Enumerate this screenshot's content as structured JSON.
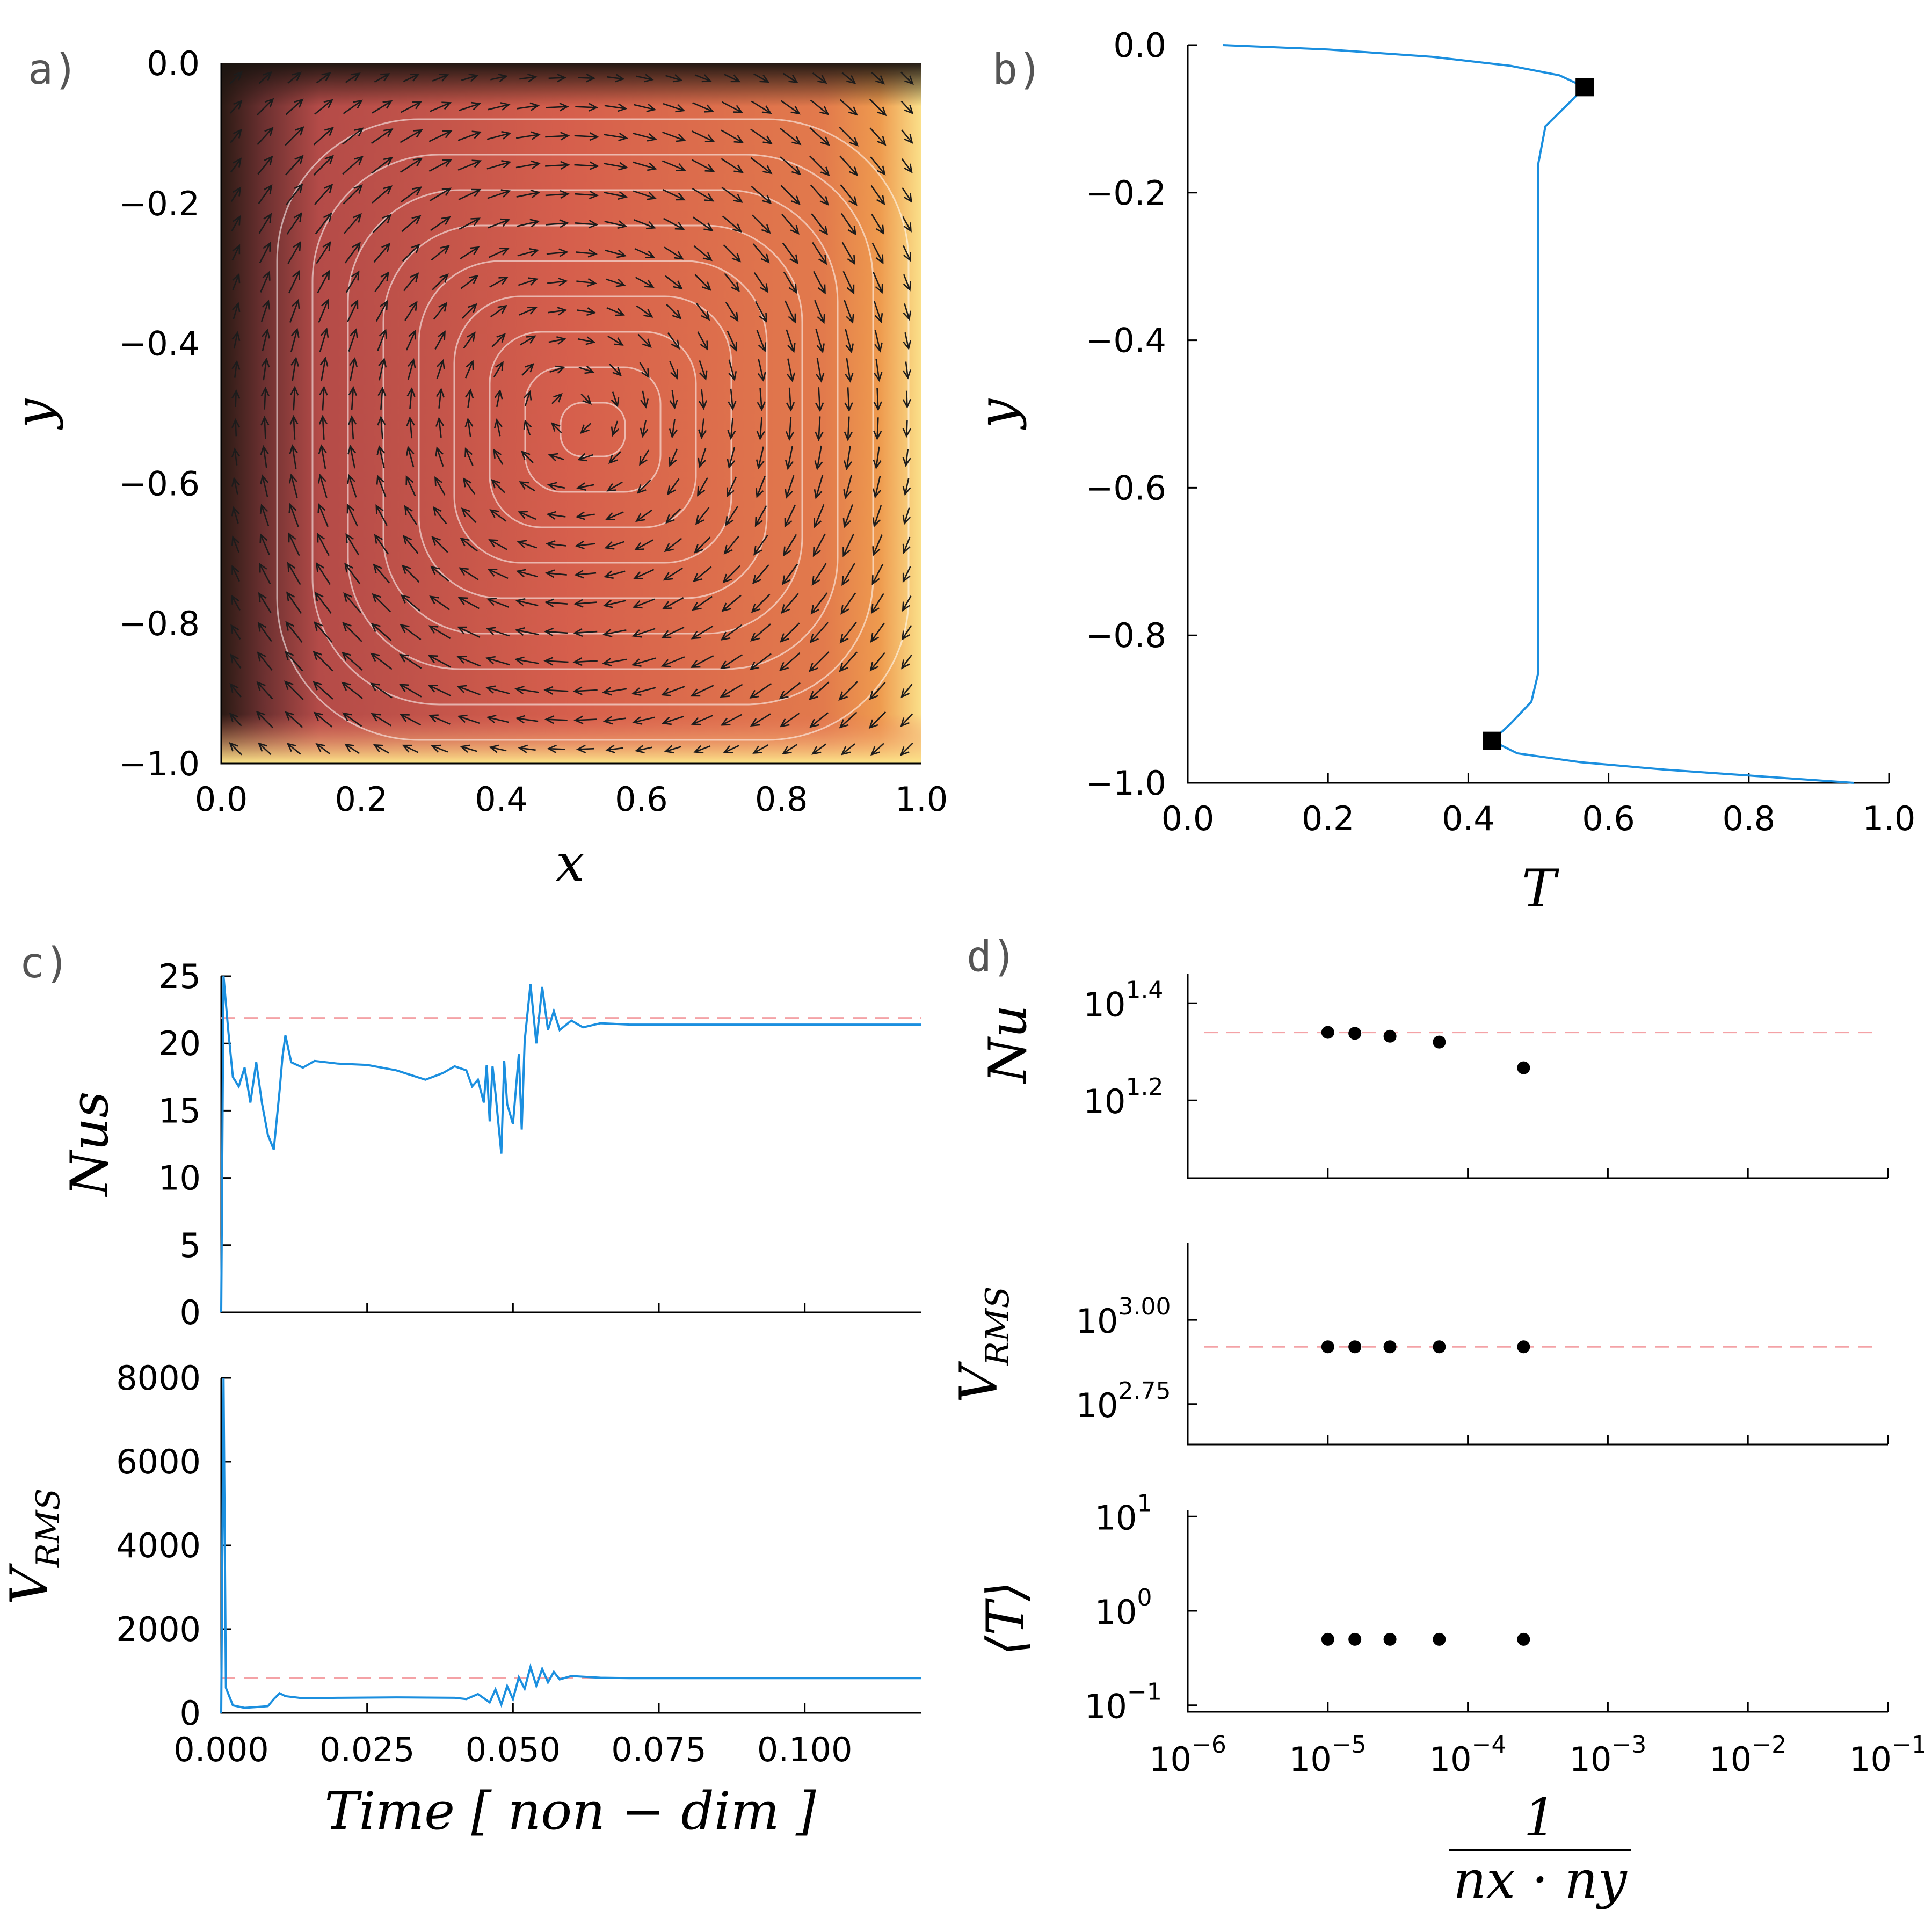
{
  "chart_data": [
    {
      "id": "a",
      "panel_label": "a)",
      "type": "heatmap",
      "title": "",
      "xlabel": "x",
      "ylabel": "y",
      "xlim": [
        0.0,
        1.0
      ],
      "ylim": [
        -1.0,
        0.0
      ],
      "x_ticks": [
        "0.0",
        "0.2",
        "0.4",
        "0.6",
        "0.8",
        "1.0"
      ],
      "y_ticks": [
        "0.0",
        "−0.2",
        "−0.4",
        "−0.6",
        "−0.8",
        "−1.0"
      ],
      "field": "temperature with velocity arrows and streamlines (single clockwise convection cell)",
      "colormap": [
        "#1a1410",
        "#5a2a2a",
        "#b94a48",
        "#d9604a",
        "#ee9a4e",
        "#fde88a"
      ],
      "colors": {
        "arrow": "#1c1c1c",
        "streamline": "#ffffff"
      }
    },
    {
      "id": "b",
      "panel_label": "b)",
      "type": "line",
      "title": "",
      "xlabel": "T",
      "ylabel": "y",
      "xlim": [
        0.0,
        1.0
      ],
      "ylim": [
        -1.0,
        0.0
      ],
      "x_ticks": [
        "0.0",
        "0.2",
        "0.4",
        "0.6",
        "0.8",
        "1.0"
      ],
      "y_ticks": [
        "0.0",
        "−0.2",
        "−0.4",
        "−0.6",
        "−0.8",
        "−1.0"
      ],
      "series": [
        {
          "points": [
            [
              0.05,
              0.0
            ],
            [
              0.2,
              -0.006
            ],
            [
              0.35,
              -0.016
            ],
            [
              0.46,
              -0.028
            ],
            [
              0.53,
              -0.041
            ],
            [
              0.566,
              -0.057
            ],
            [
              0.54,
              -0.082
            ],
            [
              0.51,
              -0.11
            ],
            [
              0.5,
              -0.16
            ],
            [
              0.5,
              -0.3
            ],
            [
              0.5,
              -0.5
            ],
            [
              0.5,
              -0.7
            ],
            [
              0.5,
              -0.85
            ],
            [
              0.49,
              -0.89
            ],
            [
              0.46,
              -0.92
            ],
            [
              0.434,
              -0.943
            ],
            [
              0.47,
              -0.96
            ],
            [
              0.56,
              -0.972
            ],
            [
              0.68,
              -0.982
            ],
            [
              0.8,
              -0.99
            ],
            [
              0.95,
              -1.0
            ]
          ],
          "color": "#1b8fdf"
        }
      ],
      "markers": [
        [
          0.566,
          -0.057
        ],
        [
          0.434,
          -0.943
        ]
      ]
    },
    {
      "id": "c1",
      "panel_label": "c)",
      "type": "line",
      "title": "",
      "xlabel": "",
      "ylabel": "Nus",
      "xlim": [
        0.0,
        0.12
      ],
      "ylim": [
        0,
        25
      ],
      "y_ticks": [
        0,
        5,
        10,
        15,
        20,
        25
      ],
      "reference": 21.9,
      "series": [
        {
          "points": [
            [
              0.0,
              0
            ],
            [
              0.0004,
              25
            ],
            [
              0.0012,
              21
            ],
            [
              0.002,
              17.5
            ],
            [
              0.003,
              16.8
            ],
            [
              0.004,
              18.2
            ],
            [
              0.005,
              15.6
            ],
            [
              0.006,
              18.6
            ],
            [
              0.007,
              15.5
            ],
            [
              0.008,
              13.2
            ],
            [
              0.009,
              12.1
            ],
            [
              0.01,
              16.5
            ],
            [
              0.0105,
              19.0
            ],
            [
              0.011,
              20.6
            ],
            [
              0.012,
              18.6
            ],
            [
              0.014,
              18.2
            ],
            [
              0.016,
              18.7
            ],
            [
              0.02,
              18.5
            ],
            [
              0.025,
              18.4
            ],
            [
              0.03,
              18.0
            ],
            [
              0.035,
              17.3
            ],
            [
              0.038,
              17.8
            ],
            [
              0.04,
              18.3
            ],
            [
              0.042,
              18.0
            ],
            [
              0.043,
              16.8
            ],
            [
              0.044,
              17.3
            ],
            [
              0.045,
              15.6
            ],
            [
              0.0455,
              18.4
            ],
            [
              0.046,
              14.2
            ],
            [
              0.0465,
              18.3
            ],
            [
              0.047,
              16.3
            ],
            [
              0.048,
              11.8
            ],
            [
              0.0485,
              18.7
            ],
            [
              0.049,
              15.5
            ],
            [
              0.05,
              14.0
            ],
            [
              0.051,
              19.2
            ],
            [
              0.0515,
              13.6
            ],
            [
              0.052,
              20.2
            ],
            [
              0.053,
              24.4
            ],
            [
              0.054,
              20.0
            ],
            [
              0.055,
              24.2
            ],
            [
              0.056,
              21.0
            ],
            [
              0.057,
              22.4
            ],
            [
              0.058,
              21.0
            ],
            [
              0.06,
              21.7
            ],
            [
              0.062,
              21.2
            ],
            [
              0.065,
              21.5
            ],
            [
              0.07,
              21.4
            ],
            [
              0.08,
              21.4
            ],
            [
              0.1,
              21.4
            ],
            [
              0.12,
              21.4
            ]
          ],
          "color": "#1b8fdf"
        }
      ]
    },
    {
      "id": "c2",
      "panel_label": "",
      "type": "line",
      "title": "",
      "xlabel": "Time [ non − dim ]",
      "ylabel": "V_RMS",
      "xlim": [
        0.0,
        0.12
      ],
      "ylim": [
        0,
        8000
      ],
      "x_ticks": [
        "0.000",
        "0.025",
        "0.050",
        "0.075",
        "0.100"
      ],
      "x_tick_values": [
        0.0,
        0.025,
        0.05,
        0.075,
        0.1
      ],
      "y_ticks": [
        0,
        2000,
        4000,
        6000,
        8000
      ],
      "reference": 830,
      "series": [
        {
          "points": [
            [
              0.0,
              0
            ],
            [
              0.0004,
              8000
            ],
            [
              0.0008,
              600
            ],
            [
              0.002,
              180
            ],
            [
              0.004,
              120
            ],
            [
              0.006,
              140
            ],
            [
              0.008,
              160
            ],
            [
              0.009,
              330
            ],
            [
              0.01,
              470
            ],
            [
              0.011,
              400
            ],
            [
              0.014,
              350
            ],
            [
              0.02,
              360
            ],
            [
              0.03,
              370
            ],
            [
              0.04,
              360
            ],
            [
              0.042,
              330
            ],
            [
              0.044,
              450
            ],
            [
              0.046,
              250
            ],
            [
              0.047,
              560
            ],
            [
              0.048,
              200
            ],
            [
              0.049,
              640
            ],
            [
              0.05,
              330
            ],
            [
              0.051,
              850
            ],
            [
              0.052,
              580
            ],
            [
              0.053,
              1100
            ],
            [
              0.054,
              650
            ],
            [
              0.055,
              1050
            ],
            [
              0.056,
              730
            ],
            [
              0.057,
              980
            ],
            [
              0.058,
              800
            ],
            [
              0.06,
              880
            ],
            [
              0.065,
              840
            ],
            [
              0.07,
              830
            ],
            [
              0.12,
              830
            ]
          ],
          "color": "#1b8fdf"
        }
      ]
    },
    {
      "id": "d1",
      "panel_label": "d)",
      "type": "scatter",
      "title": "",
      "xlabel": "",
      "ylabel": "Nu",
      "xscale": "log",
      "yscale": "log",
      "xlim": [
        1e-06,
        0.1
      ],
      "ylim_log10": [
        1.04,
        1.46
      ],
      "y_ticks": [
        {
          "base": "10",
          "exp": "1.4",
          "log10": 1.4
        },
        {
          "base": "10",
          "exp": "1.2",
          "log10": 1.2
        }
      ],
      "reference_log10": 1.34,
      "x": [
        1e-05,
        1.56e-05,
        2.78e-05,
        6.25e-05,
        0.00025
      ],
      "y_log10": [
        1.34,
        1.338,
        1.332,
        1.32,
        1.267
      ]
    },
    {
      "id": "d2",
      "panel_label": "",
      "type": "scatter",
      "title": "",
      "xlabel": "",
      "ylabel": "V_RMS",
      "xscale": "log",
      "yscale": "log",
      "xlim": [
        1e-06,
        0.1
      ],
      "ylim_log10": [
        2.63,
        3.23
      ],
      "y_ticks": [
        {
          "base": "10",
          "exp": "3.00",
          "log10": 3.0
        },
        {
          "base": "10",
          "exp": "2.75",
          "log10": 2.75
        }
      ],
      "reference_log10": 2.92,
      "x": [
        1e-05,
        1.56e-05,
        2.78e-05,
        6.25e-05,
        0.00025
      ],
      "y_log10": [
        2.92,
        2.92,
        2.92,
        2.92,
        2.92
      ]
    },
    {
      "id": "d3",
      "panel_label": "",
      "type": "scatter",
      "title": "",
      "xlabel": "1 / (nx · ny)",
      "ylabel": "⟨T⟩",
      "xscale": "log",
      "yscale": "log",
      "xlim": [
        1e-06,
        0.1
      ],
      "ylim_log10": [
        -1.07,
        1.07
      ],
      "x_ticks": [
        {
          "base": "10",
          "exp": "−6"
        },
        {
          "base": "10",
          "exp": "−5"
        },
        {
          "base": "10",
          "exp": "−4"
        },
        {
          "base": "10",
          "exp": "−3"
        },
        {
          "base": "10",
          "exp": "−2"
        },
        {
          "base": "10",
          "exp": "−1"
        }
      ],
      "y_ticks": [
        {
          "base": "10",
          "exp": "1",
          "log10": 1
        },
        {
          "base": "10",
          "exp": "0",
          "log10": 0
        },
        {
          "base": "10",
          "exp": "−1",
          "log10": -1
        }
      ],
      "x": [
        1e-05,
        1.56e-05,
        2.78e-05,
        6.25e-05,
        0.00025
      ],
      "y": [
        0.5,
        0.5,
        0.5,
        0.5,
        0.5
      ]
    }
  ],
  "colors": {
    "series": "#1b8fdf",
    "reference": "#f4a2a6",
    "marker": "#000000"
  }
}
